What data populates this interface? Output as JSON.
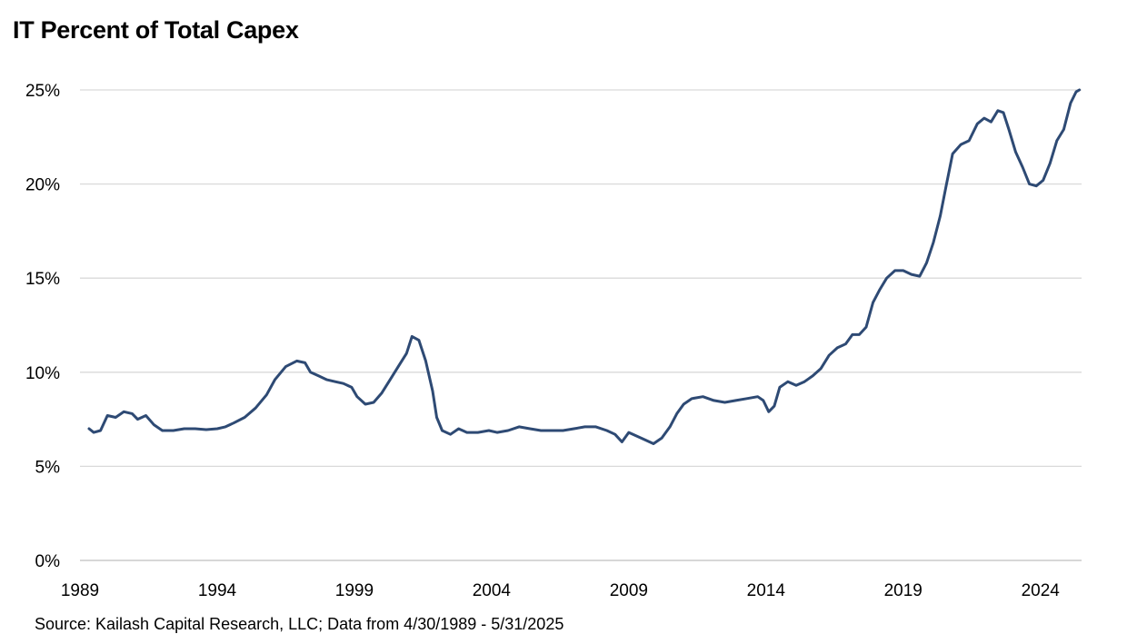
{
  "chart": {
    "title": "IT Percent of Total Capex",
    "source": "Source: Kailash Capital Research, LLC; Data from 4/30/1989 - 5/31/2025"
  },
  "colors": {
    "line": "#2e4a74",
    "grid": "#d9d9d9",
    "axis": "#bfbfbf"
  },
  "chart_data": {
    "type": "line",
    "title": "IT Percent of Total Capex",
    "xlabel": "",
    "ylabel": "",
    "x_axis": {
      "min": 1989.33,
      "max": 2025.42,
      "ticks": [
        1989,
        1994,
        1999,
        2004,
        2009,
        2014,
        2019,
        2024
      ],
      "tick_labels": [
        "1989",
        "1994",
        "1999",
        "2004",
        "2009",
        "2014",
        "2019",
        "2024"
      ]
    },
    "y_axis": {
      "min": 0,
      "max": 25,
      "ticks": [
        0,
        5,
        10,
        15,
        20,
        25
      ],
      "tick_labels": [
        "0%",
        "5%",
        "10%",
        "15%",
        "20%",
        "25%"
      ],
      "unit": "%"
    },
    "grid": "horizontal",
    "legend": "none",
    "series": [
      {
        "values": [
          [
            1989.33,
            7.0
          ],
          [
            1989.5,
            6.8
          ],
          [
            1989.75,
            6.9
          ],
          [
            1990.0,
            7.7
          ],
          [
            1990.3,
            7.6
          ],
          [
            1990.6,
            7.9
          ],
          [
            1990.9,
            7.8
          ],
          [
            1991.1,
            7.5
          ],
          [
            1991.4,
            7.7
          ],
          [
            1991.7,
            7.2
          ],
          [
            1992.0,
            6.9
          ],
          [
            1992.4,
            6.9
          ],
          [
            1992.8,
            7.0
          ],
          [
            1993.2,
            7.0
          ],
          [
            1993.6,
            6.95
          ],
          [
            1994.0,
            7.0
          ],
          [
            1994.3,
            7.1
          ],
          [
            1994.6,
            7.3
          ],
          [
            1995.0,
            7.6
          ],
          [
            1995.4,
            8.1
          ],
          [
            1995.8,
            8.8
          ],
          [
            1996.1,
            9.6
          ],
          [
            1996.5,
            10.3
          ],
          [
            1996.9,
            10.6
          ],
          [
            1997.2,
            10.5
          ],
          [
            1997.4,
            10.0
          ],
          [
            1997.7,
            9.8
          ],
          [
            1998.0,
            9.6
          ],
          [
            1998.3,
            9.5
          ],
          [
            1998.6,
            9.4
          ],
          [
            1998.9,
            9.2
          ],
          [
            1999.1,
            8.7
          ],
          [
            1999.4,
            8.3
          ],
          [
            1999.7,
            8.4
          ],
          [
            2000.0,
            8.9
          ],
          [
            2000.3,
            9.6
          ],
          [
            2000.6,
            10.3
          ],
          [
            2000.9,
            11.0
          ],
          [
            2001.1,
            11.9
          ],
          [
            2001.35,
            11.7
          ],
          [
            2001.6,
            10.6
          ],
          [
            2001.85,
            9.0
          ],
          [
            2002.0,
            7.6
          ],
          [
            2002.2,
            6.9
          ],
          [
            2002.5,
            6.7
          ],
          [
            2002.8,
            7.0
          ],
          [
            2003.1,
            6.8
          ],
          [
            2003.5,
            6.8
          ],
          [
            2003.9,
            6.9
          ],
          [
            2004.2,
            6.8
          ],
          [
            2004.6,
            6.9
          ],
          [
            2005.0,
            7.1
          ],
          [
            2005.4,
            7.0
          ],
          [
            2005.8,
            6.9
          ],
          [
            2006.2,
            6.9
          ],
          [
            2006.6,
            6.9
          ],
          [
            2007.0,
            7.0
          ],
          [
            2007.4,
            7.1
          ],
          [
            2007.8,
            7.1
          ],
          [
            2008.2,
            6.9
          ],
          [
            2008.5,
            6.7
          ],
          [
            2008.75,
            6.3
          ],
          [
            2009.0,
            6.8
          ],
          [
            2009.3,
            6.6
          ],
          [
            2009.6,
            6.4
          ],
          [
            2009.9,
            6.2
          ],
          [
            2010.2,
            6.5
          ],
          [
            2010.5,
            7.1
          ],
          [
            2010.75,
            7.8
          ],
          [
            2011.0,
            8.3
          ],
          [
            2011.3,
            8.6
          ],
          [
            2011.7,
            8.7
          ],
          [
            2012.1,
            8.5
          ],
          [
            2012.5,
            8.4
          ],
          [
            2012.9,
            8.5
          ],
          [
            2013.3,
            8.6
          ],
          [
            2013.7,
            8.7
          ],
          [
            2013.9,
            8.5
          ],
          [
            2014.1,
            7.9
          ],
          [
            2014.3,
            8.2
          ],
          [
            2014.5,
            9.2
          ],
          [
            2014.8,
            9.5
          ],
          [
            2015.1,
            9.3
          ],
          [
            2015.4,
            9.5
          ],
          [
            2015.7,
            9.8
          ],
          [
            2016.0,
            10.2
          ],
          [
            2016.3,
            10.9
          ],
          [
            2016.6,
            11.3
          ],
          [
            2016.9,
            11.5
          ],
          [
            2017.15,
            12.0
          ],
          [
            2017.4,
            12.0
          ],
          [
            2017.65,
            12.4
          ],
          [
            2017.9,
            13.7
          ],
          [
            2018.15,
            14.4
          ],
          [
            2018.4,
            15.0
          ],
          [
            2018.7,
            15.4
          ],
          [
            2019.0,
            15.4
          ],
          [
            2019.3,
            15.2
          ],
          [
            2019.6,
            15.1
          ],
          [
            2019.85,
            15.8
          ],
          [
            2020.1,
            16.9
          ],
          [
            2020.35,
            18.3
          ],
          [
            2020.55,
            19.8
          ],
          [
            2020.8,
            21.6
          ],
          [
            2021.1,
            22.1
          ],
          [
            2021.4,
            22.3
          ],
          [
            2021.7,
            23.2
          ],
          [
            2021.95,
            23.5
          ],
          [
            2022.2,
            23.3
          ],
          [
            2022.45,
            23.9
          ],
          [
            2022.65,
            23.8
          ],
          [
            2022.85,
            22.9
          ],
          [
            2023.1,
            21.7
          ],
          [
            2023.35,
            20.9
          ],
          [
            2023.6,
            20.0
          ],
          [
            2023.85,
            19.9
          ],
          [
            2024.1,
            20.2
          ],
          [
            2024.35,
            21.1
          ],
          [
            2024.6,
            22.3
          ],
          [
            2024.85,
            22.9
          ],
          [
            2025.1,
            24.3
          ],
          [
            2025.3,
            24.9
          ],
          [
            2025.42,
            25.0
          ]
        ]
      }
    ]
  }
}
